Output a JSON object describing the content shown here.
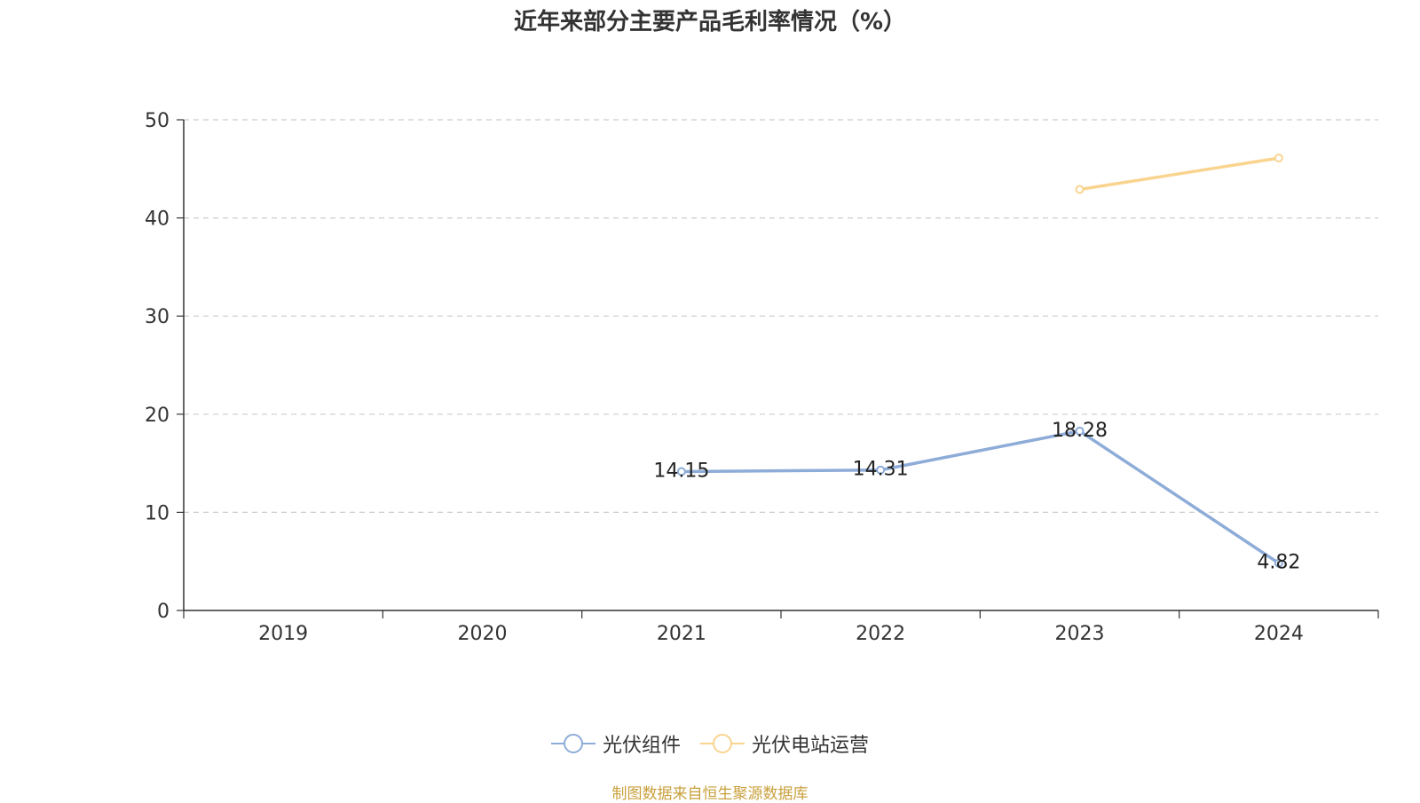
{
  "chart_data": {
    "type": "line",
    "title": "近年来部分主要产品毛利率情况（%）",
    "categories": [
      "2019",
      "2020",
      "2021",
      "2022",
      "2023",
      "2024"
    ],
    "series": [
      {
        "name": "光伏组件",
        "color": "#8eacd8",
        "values": [
          null,
          null,
          14.15,
          14.31,
          18.28,
          4.82
        ],
        "labels": [
          null,
          null,
          "14.15",
          "14.31",
          "18.28",
          "4.82"
        ]
      },
      {
        "name": "光伏电站运营",
        "color": "#f9d48f",
        "values": [
          null,
          null,
          null,
          null,
          42.9,
          46.1
        ],
        "labels": [
          null,
          null,
          null,
          null,
          null,
          null
        ]
      }
    ],
    "ylim": [
      0,
      50
    ],
    "yticks": [
      0,
      10,
      20,
      30,
      40,
      50
    ],
    "grid": true,
    "legend_position": "bottom"
  },
  "source": "制图数据来自恒生聚源数据库"
}
